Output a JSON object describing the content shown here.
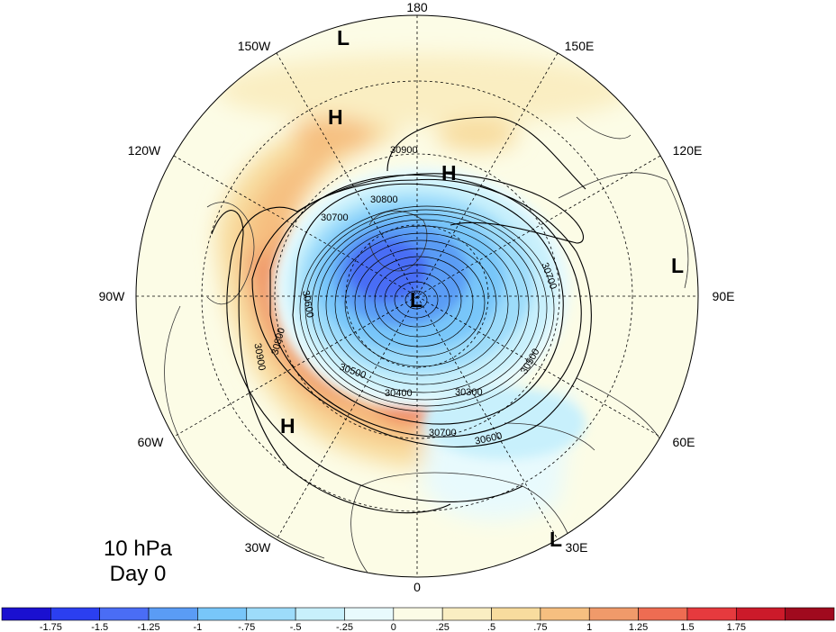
{
  "level_label": "10 hPa",
  "day_label": "Day 0",
  "longitude_labels": [
    {
      "text": "180",
      "angle": 0
    },
    {
      "text": "150E",
      "angle": 30
    },
    {
      "text": "120E",
      "angle": 60
    },
    {
      "text": "90E",
      "angle": 90
    },
    {
      "text": "60E",
      "angle": 120
    },
    {
      "text": "30E",
      "angle": 150
    },
    {
      "text": "0",
      "angle": 180
    },
    {
      "text": "30W",
      "angle": 210
    },
    {
      "text": "60W",
      "angle": 240
    },
    {
      "text": "90W",
      "angle": 270
    },
    {
      "text": "120W",
      "angle": 300
    },
    {
      "text": "150W",
      "angle": 330
    }
  ],
  "contour_labels": [
    "30900",
    "30800",
    "30700",
    "30700",
    "30600",
    "30900",
    "30800",
    "30500",
    "30400",
    "30300",
    "30500",
    "30700",
    "30600"
  ],
  "pressure_centers": [
    "L",
    "H",
    "H",
    "L",
    "L",
    "H",
    "L"
  ],
  "colorbar": {
    "colors": [
      "#1a10d0",
      "#2b3ff0",
      "#4a6df5",
      "#5a9cf5",
      "#78c6f9",
      "#9ddcfa",
      "#c8f0fc",
      "#e8fafd",
      "#fcfce6",
      "#faeec2",
      "#f8dc9e",
      "#f6bf80",
      "#f09a6a",
      "#ee6c52",
      "#e63a3e",
      "#cc1a2a",
      "#a00a1e"
    ],
    "tick_labels": [
      "-1.75",
      "-1.5",
      "-1.25",
      "-1",
      "-.75",
      "-.5",
      "-.25",
      "0",
      ".25",
      ".5",
      ".75",
      "1",
      "1.25",
      "1.5",
      "1.75"
    ]
  }
}
